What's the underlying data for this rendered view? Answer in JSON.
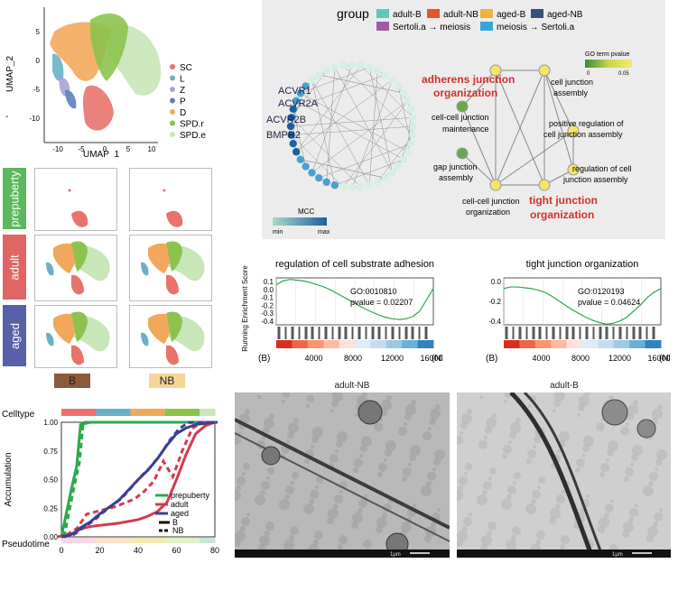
{
  "umap": {
    "xlabel": "UMAP_1",
    "ylabel": "UMAP_2",
    "xticks": [
      "-10",
      "-5",
      "0",
      "5",
      "10"
    ],
    "yticks": [
      "5",
      "0",
      "-5",
      "-10"
    ],
    "tick_mark": "-",
    "legend": [
      {
        "name": "SC",
        "color": "#e8736b"
      },
      {
        "name": "L",
        "color": "#6bb0c8"
      },
      {
        "name": "Z",
        "color": "#a9a3d8"
      },
      {
        "name": "P",
        "color": "#5d7fbf"
      },
      {
        "name": "D",
        "color": "#f2a85c"
      },
      {
        "name": "SPD.r",
        "color": "#8cc34e"
      },
      {
        "name": "SPD.e",
        "color": "#c8e6b8"
      }
    ]
  },
  "conditions": [
    {
      "label": "prepuberty",
      "color": "#5cb85c"
    },
    {
      "label": "adult",
      "color": "#e06666"
    },
    {
      "label": "aged",
      "color": "#5860a8"
    }
  ],
  "groups": [
    {
      "label": "B",
      "color": "#8b5a3c",
      "text": "#222"
    },
    {
      "label": "NB",
      "color": "#f5d59a",
      "text": "#222"
    }
  ],
  "network": {
    "group_title": "group",
    "group_legend": [
      {
        "name": "adult-B",
        "color": "#5fc7b5"
      },
      {
        "name": "adult-NB",
        "color": "#e8542a"
      },
      {
        "name": "aged-B",
        "color": "#f0b13e"
      },
      {
        "name": "aged-NB",
        "color": "#355079"
      },
      {
        "name": "Sertoli.a → meiosis",
        "color": "#9b5ba5"
      },
      {
        "name": "meiosis → Sertoli.a",
        "color": "#3aa3dc"
      }
    ],
    "genes": [
      "ACVR1",
      "ACVR2A",
      "ACVR2B",
      "BMPR2"
    ],
    "mcc_title": "MCC",
    "mcc_min": "min",
    "mcc_max": "max",
    "go_title": "GO term pvalue",
    "go_ticks": [
      "0",
      "0.05"
    ],
    "highlight_terms": [
      "adherens junction organization",
      "tight junction organization"
    ],
    "terms": [
      {
        "label": "cell junction assembly"
      },
      {
        "label": "cell-cell junction maintenance"
      },
      {
        "label": "positive regulation of cell junction assembly"
      },
      {
        "label": "gap junction assembly"
      },
      {
        "label": "regulation of cell junction assembly"
      },
      {
        "label": "cell-cell junction organization"
      }
    ]
  },
  "gsea": [
    {
      "title": "regulation of cell substrate adhesion",
      "go": "GO:0010810",
      "pvalue": "pvalue = 0.02207",
      "yticks": [
        "0.1",
        "0.0",
        "-0.1",
        "-0.2",
        "-0.3",
        "-0.4"
      ],
      "ylabel": "Running Enrichment Score",
      "xticks": [
        "4000",
        "8000",
        "12000",
        "16000"
      ],
      "left": "(B)",
      "right": "(NB)",
      "curve": [
        0.05,
        0.1,
        0.12,
        0.11,
        0.1,
        0.08,
        0.05,
        0.02,
        -0.02,
        -0.07,
        -0.12,
        -0.17,
        -0.22,
        -0.27,
        -0.31,
        -0.35,
        -0.38,
        -0.4,
        -0.41,
        -0.4,
        -0.37,
        -0.3,
        -0.15,
        0.0
      ]
    },
    {
      "title": "tight junction organization",
      "go": "GO:0120193",
      "pvalue": "pvalue = 0.04624",
      "yticks": [
        "0.0",
        "-0.2",
        "-0.4"
      ],
      "ylabel": "",
      "xticks": [
        "4000",
        "8000",
        "12000",
        "16000"
      ],
      "left": "(B)",
      "right": "(NB)",
      "curve": [
        0.0,
        0.02,
        0.02,
        0.01,
        0.0,
        -0.02,
        -0.05,
        -0.1,
        -0.16,
        -0.22,
        -0.28,
        -0.33,
        -0.38,
        -0.42,
        -0.45,
        -0.47,
        -0.46,
        -0.43,
        -0.38,
        -0.3,
        -0.22,
        -0.12,
        -0.05,
        0.0
      ]
    }
  ],
  "em": [
    {
      "title": "adult-NB",
      "scale": "1μm"
    },
    {
      "title": "adult-B",
      "scale": "1μm"
    }
  ],
  "chart_data": {
    "type": "line",
    "title": "",
    "top_label": "Celltype",
    "xlabel": "Pseudotime",
    "ylabel": "Accumulation",
    "xlim": [
      0,
      80
    ],
    "ylim": [
      0,
      1
    ],
    "xticks": [
      "0",
      "20",
      "40",
      "60",
      "80"
    ],
    "yticks": [
      "0.00",
      "0.25",
      "0.50",
      "0.75",
      "1.00"
    ],
    "x": [
      0,
      5,
      8,
      10,
      15,
      20,
      30,
      40,
      45,
      50,
      55,
      60,
      65,
      70,
      75,
      80
    ],
    "series": [
      {
        "name": "prepuberty",
        "color": "#2ea84b",
        "values": [
          0.0,
          0.4,
          0.62,
          0.98,
          1.0,
          1.0,
          1.0,
          1.0,
          1.0,
          1.0,
          1.0,
          1.0,
          1.0,
          1.0,
          1.0,
          1.0
        ]
      },
      {
        "name": "adult",
        "color": "#d53a4a",
        "values": [
          0.0,
          0.02,
          0.05,
          0.07,
          0.09,
          0.1,
          0.12,
          0.15,
          0.18,
          0.22,
          0.3,
          0.5,
          0.72,
          0.9,
          0.97,
          1.0
        ]
      },
      {
        "name": "aged",
        "color": "#3a3f91",
        "values": [
          0.0,
          0.02,
          0.05,
          0.08,
          0.13,
          0.2,
          0.32,
          0.5,
          0.58,
          0.68,
          0.8,
          0.9,
          0.95,
          0.98,
          0.99,
          1.0
        ]
      }
    ],
    "legend_style": [
      {
        "name": "B"
      },
      {
        "name": "NB"
      }
    ]
  }
}
